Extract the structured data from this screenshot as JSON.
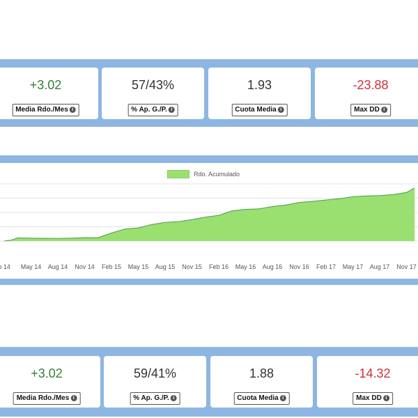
{
  "colors": {
    "band": "#8db6e3",
    "positive": "#3a7d3a",
    "negative": "#d0303b",
    "area_fill": "#99e070",
    "area_line": "#4c9a4c"
  },
  "info_icon": "info-icon",
  "panel1": {
    "stats": [
      {
        "value": "+3.02",
        "label": "Media Rdo./Mes",
        "tone": "pos"
      },
      {
        "value": "57/43%",
        "label": "% Ap. G./P.",
        "tone": "neutral"
      },
      {
        "value": "1.93",
        "label": "Cuota Media",
        "tone": "neutral"
      },
      {
        "value": "-23.88",
        "label": "Max DD",
        "tone": "neg"
      }
    ]
  },
  "panel2": {
    "stats": [
      {
        "value": "+3.02",
        "label": "Media Rdo./Mes",
        "tone": "pos"
      },
      {
        "value": "59/41%",
        "label": "% Ap. G./P.",
        "tone": "neutral"
      },
      {
        "value": "1.88",
        "label": "Cuota Media",
        "tone": "neutral"
      },
      {
        "value": "-14.32",
        "label": "Max DD",
        "tone": "neg"
      }
    ]
  },
  "chart_data": {
    "type": "area",
    "legend": "Rdo. Acumulado",
    "x_tick_labels": [
      "b 14",
      "May 14",
      "Aug 14",
      "Nov 14",
      "Feb 15",
      "May 15",
      "Aug 15",
      "Nov 15",
      "Feb 16",
      "May 16",
      "Aug 16",
      "Nov 16",
      "Feb 17",
      "May 17",
      "Aug 17",
      "Nov 17"
    ],
    "series": [
      {
        "name": "Rdo. Acumulado",
        "x": [
          0,
          0.25,
          0.5,
          1,
          2,
          2.5,
          3,
          3.5,
          4,
          4.5,
          5,
          5.5,
          6,
          6.5,
          7,
          7.5,
          8,
          8.5,
          9,
          9.5,
          10,
          10.5,
          11,
          11.5,
          12,
          12.5,
          13,
          13.5,
          14,
          14.5,
          15,
          15.3
        ],
        "y": [
          0.0,
          0.3,
          1.1,
          1.0,
          0.9,
          1.0,
          1.2,
          1.2,
          2.8,
          4.2,
          4.6,
          5.8,
          6.5,
          6.8,
          7.5,
          8.4,
          9.0,
          10.6,
          11.1,
          11.3,
          12.1,
          12.6,
          13.5,
          13.9,
          14.4,
          14.8,
          15.5,
          15.8,
          15.9,
          16.3,
          17.0,
          18.6
        ]
      }
    ],
    "ylim": [
      0,
      20
    ],
    "grid": true,
    "legend_position": "top-center"
  }
}
